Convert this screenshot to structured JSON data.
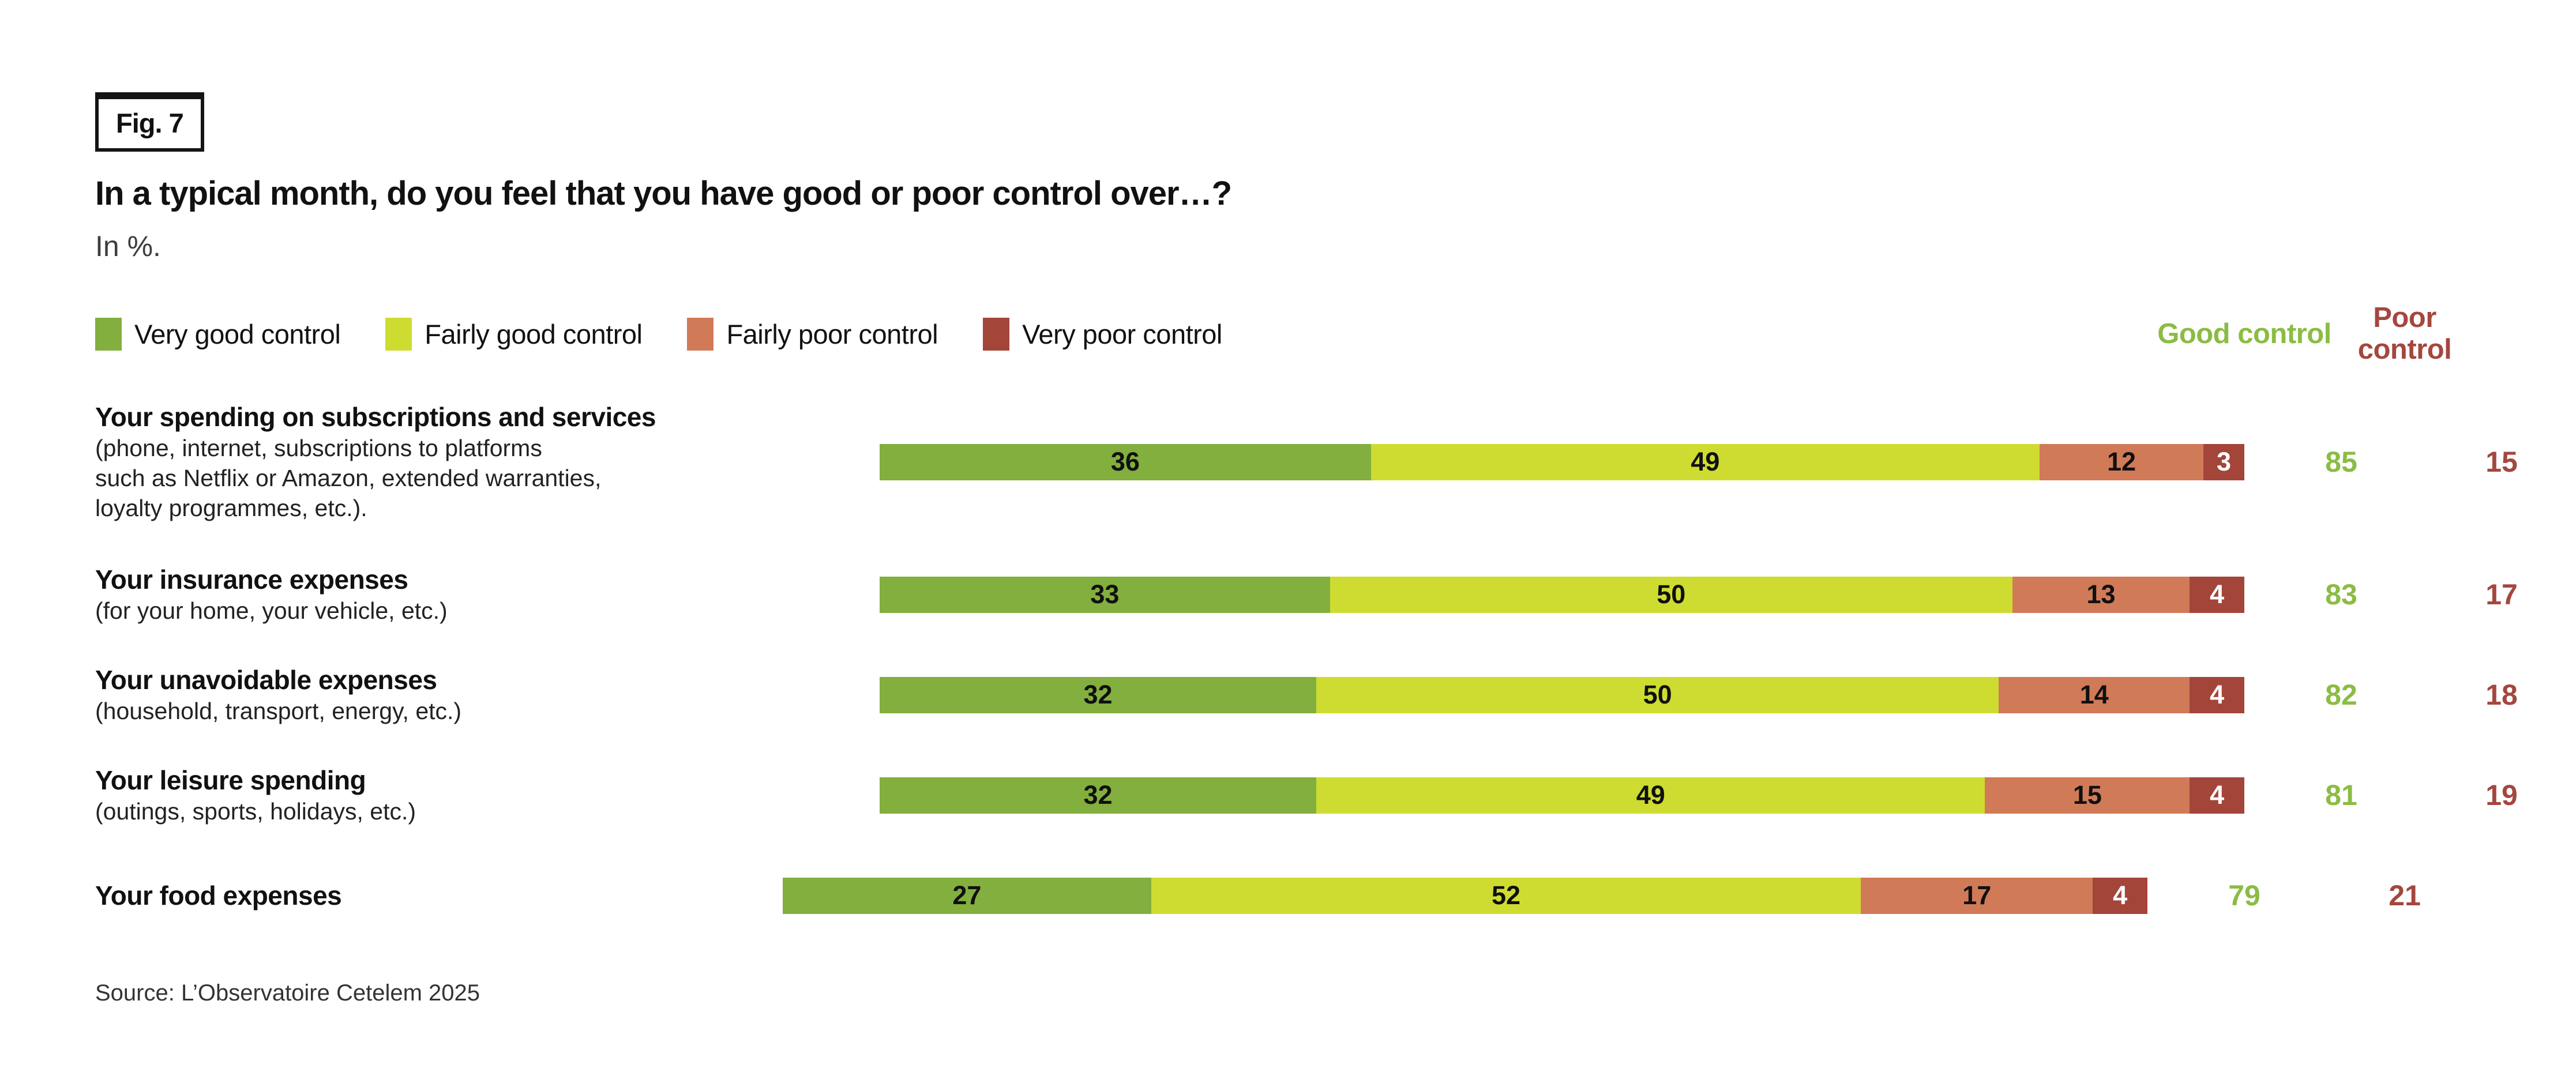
{
  "figure": {
    "tag": "Fig. 7",
    "source": "Source: L’Observatoire Cetelem 2025"
  },
  "chart_data": {
    "type": "bar",
    "orientation": "horizontal",
    "stacked": true,
    "title": "In a typical month, do you feel that you have good or poor control over…?",
    "unit_label": "In %.",
    "xlim": [
      0,
      100
    ],
    "legend_position": "top",
    "categories": [
      {
        "label": "Your spending on subscriptions and services",
        "sublabel": "(phone, internet, subscriptions to platforms\nsuch as Netflix or Amazon, extended warranties,\nloyalty programmes, etc.)."
      },
      {
        "label": "Your insurance expenses",
        "sublabel": "(for your home, your vehicle, etc.)"
      },
      {
        "label": "Your unavoidable expenses",
        "sublabel": "(household, transport, energy, etc.)"
      },
      {
        "label": "Your leisure spending",
        "sublabel": "(outings, sports, holidays, etc.)"
      },
      {
        "label": "Your food expenses",
        "sublabel": ""
      }
    ],
    "series": [
      {
        "name": "Very good control",
        "color": "#82af3e",
        "values": [
          36,
          33,
          32,
          32,
          27
        ]
      },
      {
        "name": "Fairly good control",
        "color": "#cedc31",
        "values": [
          49,
          50,
          50,
          49,
          52
        ]
      },
      {
        "name": "Fairly poor control",
        "color": "#d17a57",
        "values": [
          12,
          13,
          14,
          15,
          17
        ]
      },
      {
        "name": "Very poor control",
        "color": "#a4453a",
        "values": [
          3,
          4,
          4,
          4,
          4
        ]
      }
    ],
    "summary": {
      "good": {
        "header": "Good control",
        "color": "#8bbc44",
        "values": [
          85,
          83,
          82,
          81,
          79
        ]
      },
      "poor": {
        "header": "Poor control",
        "color": "#a4473f",
        "values": [
          15,
          17,
          18,
          19,
          21
        ]
      }
    }
  }
}
